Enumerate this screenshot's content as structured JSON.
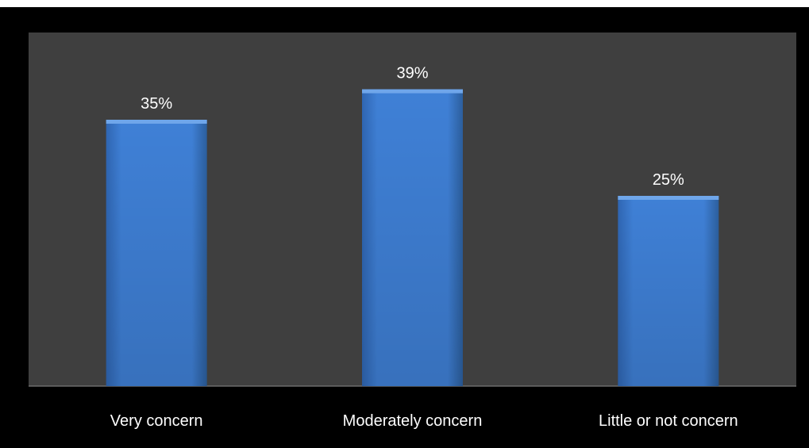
{
  "chart_data": {
    "type": "bar",
    "categories": [
      "Very concern",
      "Moderately concern",
      "Little or not concern"
    ],
    "values": [
      35,
      39,
      25
    ],
    "value_labels": [
      "35%",
      "39%",
      "25%"
    ],
    "ylim": [
      0,
      45
    ],
    "grid": false,
    "legend": "none",
    "colors": {
      "bar": "#3f7fd4",
      "bar_dark": "#2c5f9e",
      "bar_top": "#6fa6ea",
      "plot_background": "#3f3f3f",
      "page_background": "#000000",
      "text": "#ffffff"
    }
  }
}
